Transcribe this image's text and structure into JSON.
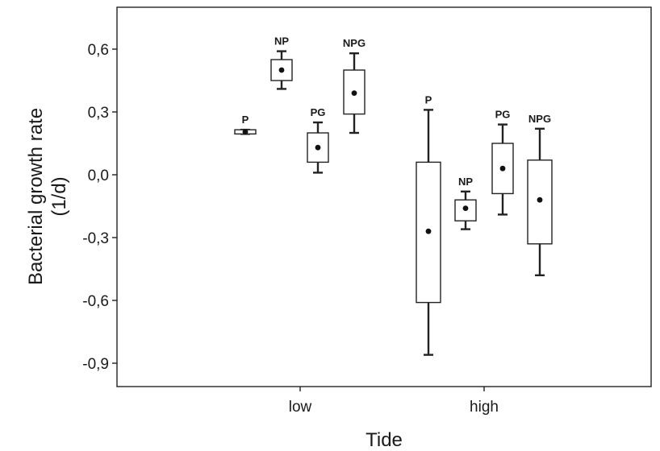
{
  "chart_data": {
    "type": "box",
    "xlabel": "Tide",
    "ylabel_line1": "Bacterial growth rate",
    "ylabel_line2": "(1/d)",
    "ylim": [
      -1.0,
      0.75
    ],
    "yticks": [
      {
        "value": 0.6,
        "label": "0,6"
      },
      {
        "value": 0.3,
        "label": "0,3"
      },
      {
        "value": 0.0,
        "label": "0,0"
      },
      {
        "value": -0.3,
        "label": "-0,3"
      },
      {
        "value": -0.6,
        "label": "-0,6"
      },
      {
        "value": -0.9,
        "label": "-0,9"
      }
    ],
    "categories": [
      "low",
      "high"
    ],
    "groups": [
      {
        "tide": "low",
        "label": "P",
        "mean": 0.205,
        "box_low": 0.195,
        "box_high": 0.215,
        "whisker_low": 0.195,
        "whisker_high": 0.215
      },
      {
        "tide": "low",
        "label": "NP",
        "mean": 0.5,
        "box_low": 0.45,
        "box_high": 0.55,
        "whisker_low": 0.41,
        "whisker_high": 0.59
      },
      {
        "tide": "low",
        "label": "PG",
        "mean": 0.13,
        "box_low": 0.06,
        "box_high": 0.2,
        "whisker_low": 0.01,
        "whisker_high": 0.25
      },
      {
        "tide": "low",
        "label": "NPG",
        "mean": 0.39,
        "box_low": 0.29,
        "box_high": 0.5,
        "whisker_low": 0.2,
        "whisker_high": 0.58
      },
      {
        "tide": "high",
        "label": "P",
        "mean": -0.27,
        "box_low": -0.61,
        "box_high": 0.06,
        "whisker_low": -0.86,
        "whisker_high": 0.31
      },
      {
        "tide": "high",
        "label": "NP",
        "mean": -0.16,
        "box_low": -0.22,
        "box_high": -0.12,
        "whisker_low": -0.26,
        "whisker_high": -0.08
      },
      {
        "tide": "high",
        "label": "PG",
        "mean": 0.03,
        "box_low": -0.09,
        "box_high": 0.15,
        "whisker_low": -0.19,
        "whisker_high": 0.24
      },
      {
        "tide": "high",
        "label": "NPG",
        "mean": -0.12,
        "box_low": -0.33,
        "box_high": 0.07,
        "whisker_low": -0.48,
        "whisker_high": 0.22
      }
    ],
    "grid": false,
    "legend": "none"
  }
}
